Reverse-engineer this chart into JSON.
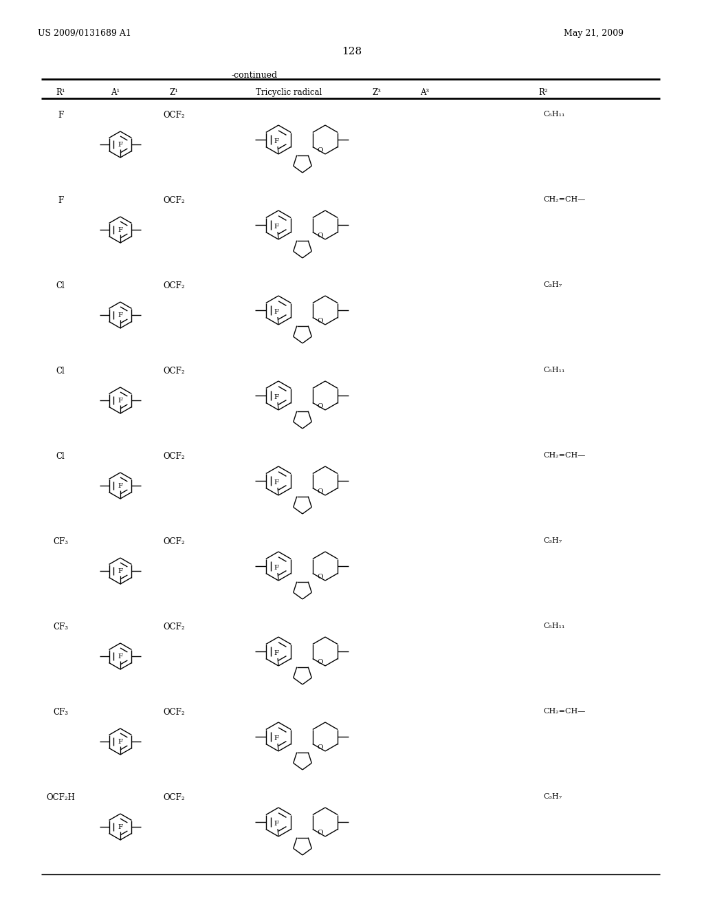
{
  "page_header_left": "US 2009/0131689 A1",
  "page_header_right": "May 21, 2009",
  "page_number": "128",
  "continued_label": "-continued",
  "col_headers_display": [
    "R¹",
    "A¹",
    "Z¹",
    "Tricyclic radical",
    "Z³",
    "A³",
    "R²"
  ],
  "rows": [
    {
      "R1": "F",
      "Z1": "OCF₂",
      "R2": "C₅H₁₁"
    },
    {
      "R1": "F",
      "Z1": "OCF₂",
      "R2": "CH₂=CH—"
    },
    {
      "R1": "Cl",
      "Z1": "OCF₂",
      "R2": "C₃H₇"
    },
    {
      "R1": "Cl",
      "Z1": "OCF₂",
      "R2": "C₅H₁₁"
    },
    {
      "R1": "Cl",
      "Z1": "OCF₂",
      "R2": "CH₂=CH—"
    },
    {
      "R1": "CF₃",
      "Z1": "OCF₂",
      "R2": "C₃H₇"
    },
    {
      "R1": "CF₃",
      "Z1": "OCF₂",
      "R2": "C₅H₁₁"
    },
    {
      "R1": "CF₃",
      "Z1": "OCF₂",
      "R2": "CH₂=CH—"
    },
    {
      "R1": "OCF₂H",
      "Z1": "OCF₂",
      "R2": "C₃H₇"
    }
  ],
  "background_color": "#ffffff",
  "text_color": "#000000"
}
